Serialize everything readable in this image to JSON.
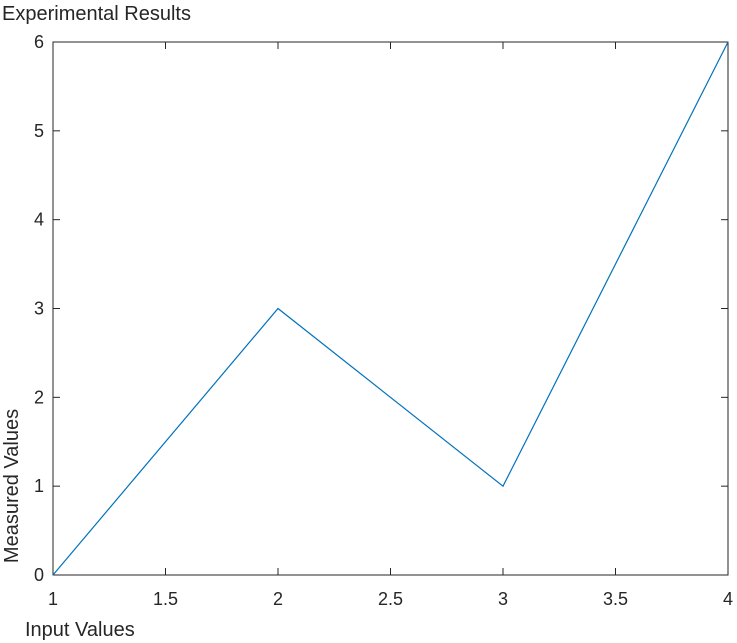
{
  "chart_data": {
    "type": "line",
    "title": "Experimental Results",
    "xlabel": "Input Values",
    "ylabel": "Measured Values",
    "xlim": [
      1,
      4
    ],
    "ylim": [
      0,
      6
    ],
    "xticks": [
      1,
      1.5,
      2,
      2.5,
      3,
      3.5,
      4
    ],
    "xtick_labels": [
      "1",
      "1.5",
      "2",
      "2.5",
      "3",
      "3.5",
      "4"
    ],
    "yticks": [
      0,
      1,
      2,
      3,
      4,
      5,
      6
    ],
    "ytick_labels": [
      "0",
      "1",
      "2",
      "3",
      "4",
      "5",
      "6"
    ],
    "grid": false,
    "box": true,
    "series": [
      {
        "x": [
          1,
          2,
          3,
          4
        ],
        "y": [
          0,
          3,
          1,
          6
        ],
        "color": "#0072BD"
      }
    ]
  }
}
